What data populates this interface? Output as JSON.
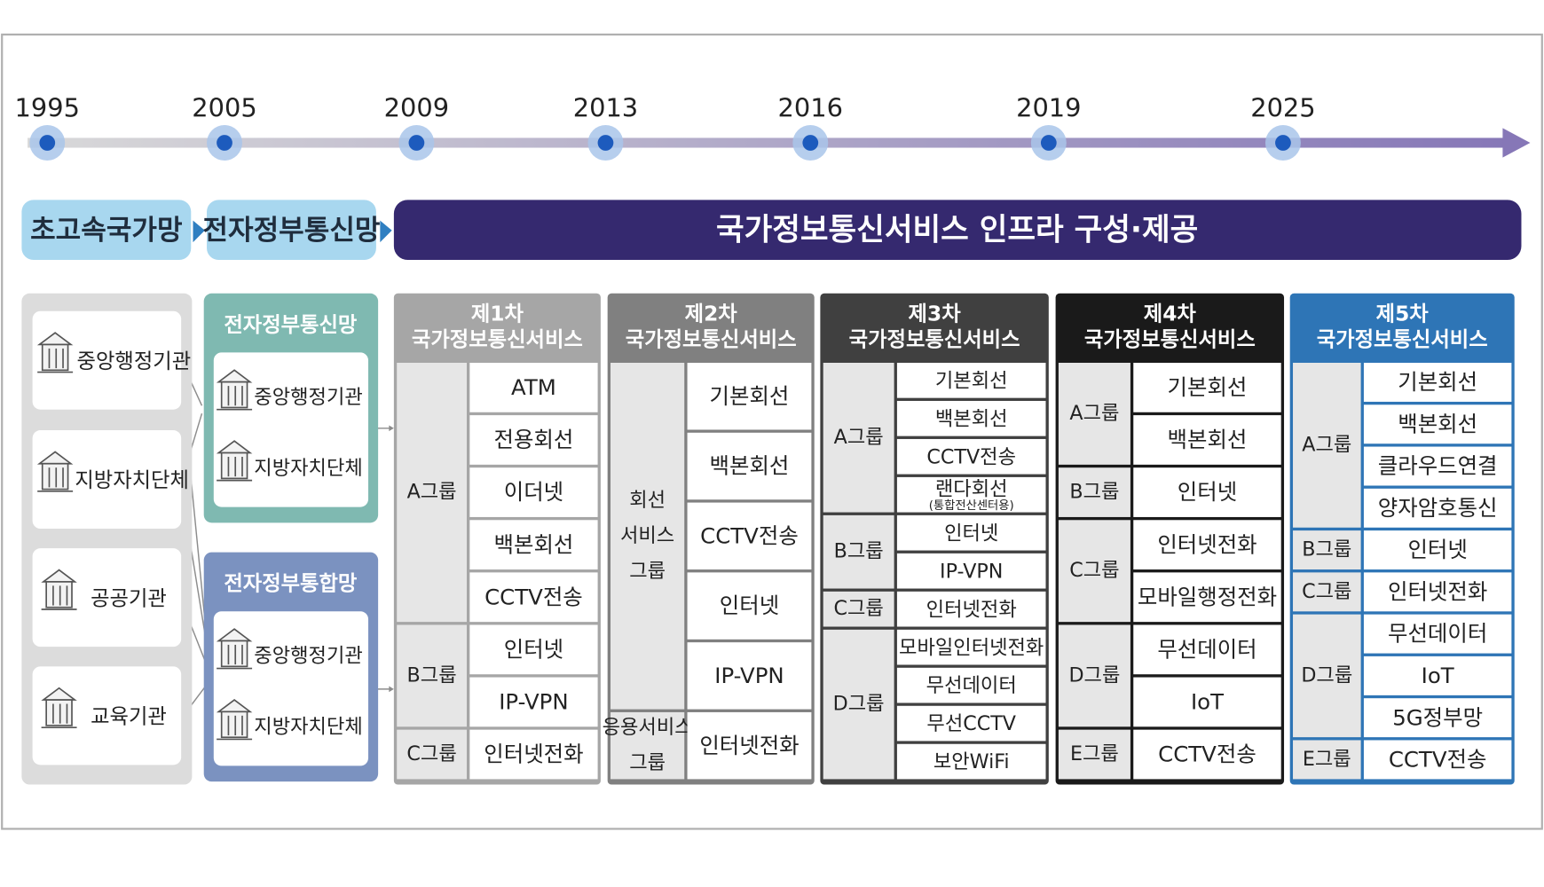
{
  "timeline": {
    "years": [
      "1995",
      "2005",
      "2009",
      "2013",
      "2016",
      "2019",
      "2025"
    ]
  },
  "phases": [
    "초고속국가망",
    "전자정부통신망",
    "국가정보통신서비스 인프라 구성·제공"
  ],
  "agencies": [
    "중앙행정기관",
    "지방자치단체",
    "공공기관",
    "교육기관"
  ],
  "networks": [
    {
      "title": "전자정부통신망",
      "items": [
        "중앙행정기관",
        "지방자치단체"
      ]
    },
    {
      "title": "전자정부통합망",
      "items": [
        "중앙행정기관",
        "지방자치단체"
      ]
    }
  ],
  "generations": [
    {
      "title": [
        "제1차",
        "국가정보통신서비스"
      ],
      "groups": [
        {
          "name": [
            "A그룹"
          ],
          "services": [
            "ATM",
            "전용회선",
            "이더넷",
            "백본회선",
            "CCTV전송"
          ]
        },
        {
          "name": [
            "B그룹"
          ],
          "services": [
            "인터넷",
            "IP-VPN"
          ]
        },
        {
          "name": [
            "C그룹"
          ],
          "services": [
            "인터넷전화"
          ]
        }
      ]
    },
    {
      "title": [
        "제2차",
        "국가정보통신서비스"
      ],
      "groups": [
        {
          "name": [
            "회선",
            "서비스",
            "그룹"
          ],
          "services": [
            "기본회선",
            "백본회선",
            "CCTV전송",
            "인터넷",
            "IP-VPN"
          ]
        },
        {
          "name": [
            "응용서비스",
            "그룹"
          ],
          "services": [
            "인터넷전화"
          ]
        }
      ]
    },
    {
      "title": [
        "제3차",
        "국가정보통신서비스"
      ],
      "groups": [
        {
          "name": [
            "A그룹"
          ],
          "services": [
            "기본회선",
            "백본회선",
            "CCTV전송",
            {
              "text": "랜다회선",
              "note": "(통합전산센터용)"
            }
          ]
        },
        {
          "name": [
            "B그룹"
          ],
          "services": [
            "인터넷",
            "IP-VPN"
          ]
        },
        {
          "name": [
            "C그룹"
          ],
          "services": [
            "인터넷전화"
          ]
        },
        {
          "name": [
            "D그룹"
          ],
          "services": [
            "모바일인터넷전화",
            "무선데이터",
            "무선CCTV",
            "보안WiFi"
          ]
        }
      ]
    },
    {
      "title": [
        "제4차",
        "국가정보통신서비스"
      ],
      "groups": [
        {
          "name": [
            "A그룹"
          ],
          "services": [
            "기본회선",
            "백본회선"
          ]
        },
        {
          "name": [
            "B그룹"
          ],
          "services": [
            "인터넷"
          ]
        },
        {
          "name": [
            "C그룹"
          ],
          "services": [
            "인터넷전화",
            "모바일행정전화"
          ]
        },
        {
          "name": [
            "D그룹"
          ],
          "services": [
            "무선데이터",
            "IoT"
          ]
        },
        {
          "name": [
            "E그룹"
          ],
          "services": [
            "CCTV전송"
          ]
        }
      ]
    },
    {
      "title": [
        "제5차",
        "국가정보통신서비스"
      ],
      "groups": [
        {
          "name": [
            "A그룹"
          ],
          "services": [
            "기본회선",
            "백본회선",
            "클라우드연결",
            "양자암호통신"
          ]
        },
        {
          "name": [
            "B그룹"
          ],
          "services": [
            "인터넷"
          ]
        },
        {
          "name": [
            "C그룹"
          ],
          "services": [
            "인터넷전화"
          ]
        },
        {
          "name": [
            "D그룹"
          ],
          "services": [
            "무선데이터",
            "IoT",
            "5G정부망"
          ]
        },
        {
          "name": [
            "E그룹"
          ],
          "services": [
            "CCTV전송"
          ]
        }
      ]
    }
  ]
}
